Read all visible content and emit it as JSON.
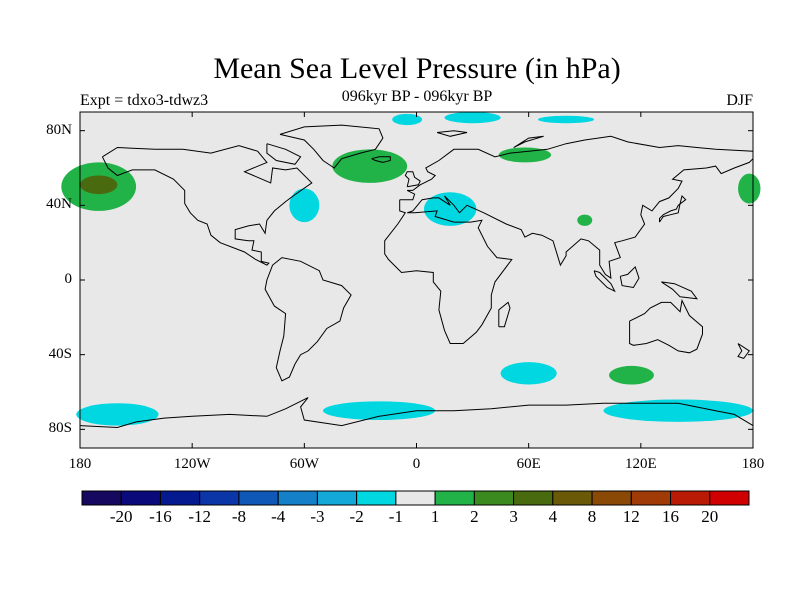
{
  "header": {
    "title": "Mean Sea Level Pressure (in hPa)",
    "experiment": "Expt = tdxo3-tdwz3",
    "period": "096kyr BP - 096kyr BP",
    "season": "DJF"
  },
  "map": {
    "lon_range": [
      -180,
      180
    ],
    "lat_range": [
      -90,
      90
    ],
    "x_ticks": [
      {
        "lon": -180,
        "label": "180"
      },
      {
        "lon": -120,
        "label": "120W"
      },
      {
        "lon": -60,
        "label": "60W"
      },
      {
        "lon": 0,
        "label": "0"
      },
      {
        "lon": 60,
        "label": "60E"
      },
      {
        "lon": 120,
        "label": "120E"
      },
      {
        "lon": 180,
        "label": "180"
      }
    ],
    "y_ticks": [
      {
        "lat": 80,
        "label": "80N"
      },
      {
        "lat": 40,
        "label": "40N"
      },
      {
        "lat": 0,
        "label": "0"
      },
      {
        "lat": -40,
        "label": "40S"
      },
      {
        "lat": -80,
        "label": "80S"
      }
    ],
    "background_color": "#e8e8e8",
    "features": [
      {
        "name": "north-pacific-positive-anomaly",
        "category": "1 to 2",
        "lon": -170,
        "lat": 50,
        "rlon": 20,
        "rlat": 13
      },
      {
        "name": "north-pacific-core-anomaly",
        "category": "3 to 4",
        "lon": -170,
        "lat": 51,
        "rlon": 10,
        "rlat": 5
      },
      {
        "name": "north-atlantic-positive-anomaly",
        "category": "1 to 2",
        "lon": -25,
        "lat": 61,
        "rlon": 20,
        "rlat": 9
      },
      {
        "name": "barents-positive-anomaly",
        "category": "1 to 2",
        "lon": 58,
        "lat": 67,
        "rlon": 14,
        "rlat": 4
      },
      {
        "name": "dateline-positive-anomaly",
        "category": "1 to 2",
        "lon": 178,
        "lat": 49,
        "rlon": 6,
        "rlat": 8
      },
      {
        "name": "central-asia-positive-anomaly",
        "category": "1 to 2",
        "lon": 90,
        "lat": 32,
        "rlon": 4,
        "rlat": 3
      },
      {
        "name": "south-indian-positive-anomaly",
        "category": "1 to 2",
        "lon": 115,
        "lat": -51,
        "rlon": 12,
        "rlat": 5
      },
      {
        "name": "northwest-atlantic-negative-anomaly",
        "category": "-2 to -1",
        "lon": -60,
        "lat": 40,
        "rlon": 8,
        "rlat": 9
      },
      {
        "name": "mediterranean-negative-anomaly",
        "category": "-2 to -1",
        "lon": 18,
        "lat": 38,
        "rlon": 14,
        "rlat": 9
      },
      {
        "name": "south-atlantic-negative-anomaly",
        "category": "-2 to -1",
        "lon": 60,
        "lat": -50,
        "rlon": 15,
        "rlat": 6
      },
      {
        "name": "arctic-negative-anomaly-1",
        "category": "-2 to -1",
        "lon": -5,
        "lat": 86,
        "rlon": 8,
        "rlat": 3
      },
      {
        "name": "arctic-negative-anomaly-2",
        "category": "-2 to -1",
        "lon": 30,
        "lat": 87,
        "rlon": 15,
        "rlat": 3
      },
      {
        "name": "arctic-negative-anomaly-3",
        "category": "-2 to -1",
        "lon": 80,
        "lat": 86,
        "rlon": 15,
        "rlat": 2
      },
      {
        "name": "southern-ocean-negative-anomaly-1",
        "category": "-2 to -1",
        "lon": -160,
        "lat": -72,
        "rlon": 22,
        "rlat": 6
      },
      {
        "name": "southern-ocean-negative-anomaly-2",
        "category": "-2 to -1",
        "lon": -20,
        "lat": -70,
        "rlon": 30,
        "rlat": 5
      },
      {
        "name": "southern-ocean-negative-anomaly-3",
        "category": "-2 to -1",
        "lon": 140,
        "lat": -70,
        "rlon": 40,
        "rlat": 6
      }
    ]
  },
  "colorbar": {
    "boxes": [
      {
        "color": "#16085f",
        "category": "< -20"
      },
      {
        "color": "#0a0a7a",
        "category": "-20 to -16"
      },
      {
        "color": "#061a8f",
        "category": "-16 to -12"
      },
      {
        "color": "#0a36a8",
        "category": "-12 to -8"
      },
      {
        "color": "#0f58b8",
        "category": "-8 to -4"
      },
      {
        "color": "#1380c8",
        "category": "-4 to -3"
      },
      {
        "color": "#14a8d8",
        "category": "-3 to -2"
      },
      {
        "color": "#00d7e0",
        "category": "-2 to -1"
      },
      {
        "color": "#e8e8e8",
        "category": "-1 to 1"
      },
      {
        "color": "#21b347",
        "category": "1 to 2"
      },
      {
        "color": "#3a8a20",
        "category": "2 to 3"
      },
      {
        "color": "#4a6a10",
        "category": "3 to 4"
      },
      {
        "color": "#6a5a08",
        "category": "4 to 8"
      },
      {
        "color": "#8a4a06",
        "category": "8 to 12"
      },
      {
        "color": "#a03a06",
        "category": "12 to 16"
      },
      {
        "color": "#b81a06",
        "category": "16 to 20"
      },
      {
        "color": "#d00000",
        "category": "> 20"
      }
    ],
    "labels": [
      "-20",
      "-16",
      "-12",
      "-8",
      "-4",
      "-3",
      "-2",
      "-1",
      "1",
      "2",
      "3",
      "4",
      "8",
      "12",
      "16",
      "20"
    ]
  }
}
